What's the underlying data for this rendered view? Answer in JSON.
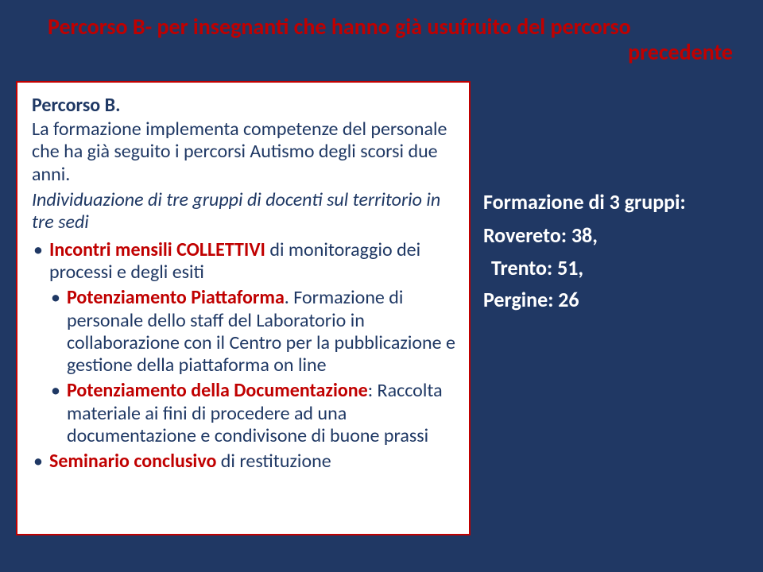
{
  "title": {
    "line1": "Percorso B- per insegnanti che hanno già usufruito del percorso",
    "line2": "precedente"
  },
  "leftPanel": {
    "heading": "Percorso B.",
    "intro": "La formazione implementa competenze del personale che ha già seguito i percorsi Autismo degli scorsi due anni.",
    "subintro": "Individuazione di tre gruppi di docenti sul territorio in tre sedi",
    "bullets": {
      "b1_bold": "Incontri mensili COLLETTIVI ",
      "b1_rest": "di monitoraggio dei processi e degli esiti",
      "b2a_bold": "Potenziamento Piattaforma",
      "b2a_rest": ". Formazione di personale dello staff del Laboratorio in collaborazione con il Centro per la pubblicazione e gestione della piattaforma on line",
      "b2b_bold": "Potenziamento della Documentazione",
      "b2b_rest": ": Raccolta materiale ai fini di procedere ad una documentazione e condivisone di buone prassi",
      "b3_bold": "Seminario conclusivo ",
      "b3_rest": "di restituzione"
    }
  },
  "rightPanel": {
    "heading": "Formazione di 3 gruppi:",
    "l1": "Rovereto: 38,",
    "l2": "Trento: 51,",
    "l3": "Pergine: 26"
  },
  "colors": {
    "background": "#203864",
    "panel_bg": "#ffffff",
    "panel_border": "#c00000",
    "accent_red": "#c00000",
    "text_blue": "#1f3864",
    "text_white": "#ffffff"
  }
}
